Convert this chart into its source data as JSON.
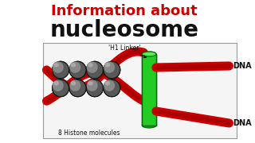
{
  "title_line1": "Information about",
  "title_line2": "nucleosome",
  "title_color1": "#cc0000",
  "title_color2": "#111111",
  "bg_color": "#ffffff",
  "diagram_bg": "#f5f5f5",
  "histone_color_dark": "#2a2a2a",
  "histone_color_mid": "#606060",
  "histone_color_light": "#aaaaaa",
  "dna_color": "#cc0000",
  "dna_dark": "#880000",
  "linker_color": "#22cc22",
  "linker_dark": "#006600",
  "label_h1": "'H1 Linker'",
  "label_histone": "8 Histone molecules",
  "label_dna": "DNA",
  "title1_fontsize": 13,
  "title2_fontsize": 20
}
